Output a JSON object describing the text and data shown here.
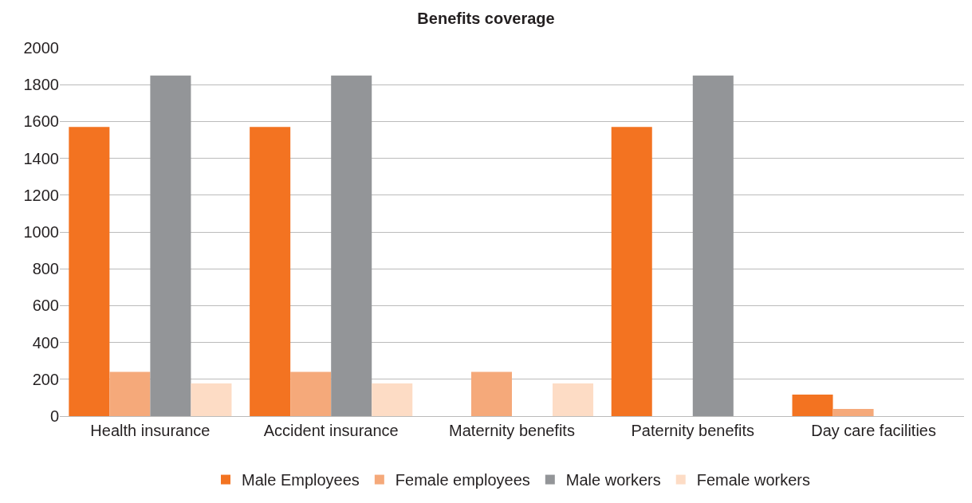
{
  "chart_data": {
    "type": "bar",
    "title": "Benefits coverage",
    "categories": [
      "Health insurance",
      "Accident insurance",
      "Maternity benefits",
      "Paternity benefits",
      "Day care facilities"
    ],
    "series": [
      {
        "name": "Male Employees",
        "color": "#f37321",
        "values": [
          1570,
          1570,
          0,
          1570,
          117
        ]
      },
      {
        "name": "Female employees",
        "color": "#f5a97a",
        "values": [
          240,
          240,
          240,
          0,
          39
        ]
      },
      {
        "name": "Male workers",
        "color": "#939598",
        "values": [
          1850,
          1850,
          0,
          1850,
          0
        ]
      },
      {
        "name": "Female workers",
        "color": "#fddcc5",
        "values": [
          177,
          177,
          177,
          0,
          0
        ]
      }
    ],
    "ylim": [
      0,
      2000
    ],
    "yticks": [
      0,
      200,
      400,
      600,
      800,
      1000,
      1200,
      1400,
      1600,
      1800,
      2000
    ],
    "grid": "y",
    "legend": "bottom"
  }
}
